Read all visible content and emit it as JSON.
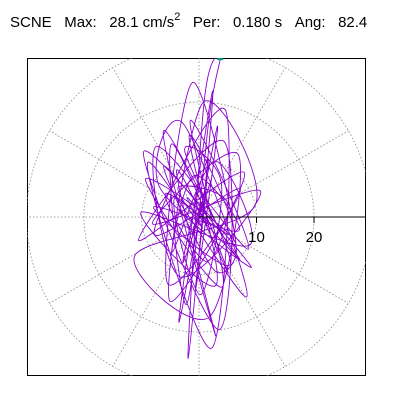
{
  "header": {
    "station": "SCNE",
    "max_label": "Max:",
    "max_value": "28.1",
    "max_unit_base": "cm/s",
    "max_unit_exp": "2",
    "per_label": "Per:",
    "per_value": "0.180 s",
    "ang_label": "Ang:",
    "ang_value": "82.4"
  },
  "chart_data": {
    "type": "line",
    "title": "",
    "xlabel": "",
    "ylabel": "",
    "polar_grid": {
      "rings": [
        10,
        20,
        30
      ],
      "spokes_deg": [
        0,
        30,
        60,
        90,
        120,
        150,
        180,
        210,
        240,
        270,
        300,
        330
      ],
      "style": "dotted"
    },
    "axis_ticks": [
      {
        "value": 10,
        "label": "10"
      },
      {
        "value": 20,
        "label": "20"
      }
    ],
    "radius_limit": 28.1,
    "principal_angle_deg": 82.4,
    "peak_marker": {
      "x": 3.7,
      "y": 27.8,
      "color": "#009977"
    },
    "trace_color": "#8800cc",
    "series": [
      {
        "name": "",
        "x": [
          0,
          0.4,
          -1.2,
          2.1,
          -2.8,
          1.6,
          -0.6,
          3.2,
          -3.5,
          2.4,
          -1.9,
          0.9,
          3.7,
          1.8,
          -2.2,
          -4.8,
          5.1,
          -3.9,
          2.9,
          -6.2,
          6.4,
          -1.1,
          -5.5,
          7.2,
          -7.8,
          4.6,
          2.2,
          -8.9,
          8.3,
          -2.7,
          -6.9,
          9.1,
          -9.6,
          3.5,
          4.4,
          -10.5,
          7.9,
          -5.1,
          0.7,
          9.8,
          -11.2,
          1.9,
          6.8,
          -8.1,
          10.7,
          -3.3,
          -7.4,
          8.6,
          -1.5,
          4.1,
          -9.3,
          5.9,
          2.6,
          -6.1,
          7.1,
          -4.2,
          0.3,
          3.9,
          -2.5,
          5.4,
          -7.9,
          6.9,
          -0.8,
          -4.6,
          2.8,
          8.8,
          -10.1,
          3.0,
          -1.7,
          6.1,
          -5.8,
          1.2,
          4.9,
          -3.6,
          0.6,
          -2.1,
          1.5,
          0.0
        ],
        "y": [
          0,
          2.5,
          -3.1,
          6.4,
          -7.9,
          10.2,
          -12.6,
          15.8,
          -18.3,
          21.9,
          -24.6,
          20.1,
          27.8,
          17.5,
          -15.2,
          12.7,
          -9.8,
          8.1,
          -20.7,
          14.9,
          -6.3,
          23.4,
          -11.5,
          4.8,
          -2.9,
          18.6,
          -22.8,
          9.5,
          -13.9,
          16.2,
          5.3,
          -8.7,
          11.4,
          -19.6,
          13.1,
          -4.1,
          7.7,
          -14.6,
          19.9,
          2.1,
          -6.8,
          -17.3,
          10.9,
          -1.2,
          4.5,
          -10.4,
          12.3,
          -5.6,
          16.8,
          -12.1,
          6.6,
          -3.7,
          -9.2,
          8.9,
          -7.4,
          3.3,
          -13.5,
          5.8,
          11.6,
          -8.3,
          1.7,
          -2.4,
          7.2,
          -6.1,
          9.7,
          -4.9,
          0.8,
          -11.8,
          14.2,
          -3.0,
          4.1,
          -7.7,
          2.6,
          5.2,
          -1.9,
          3.4,
          -0.9,
          0.0
        ]
      }
    ]
  }
}
